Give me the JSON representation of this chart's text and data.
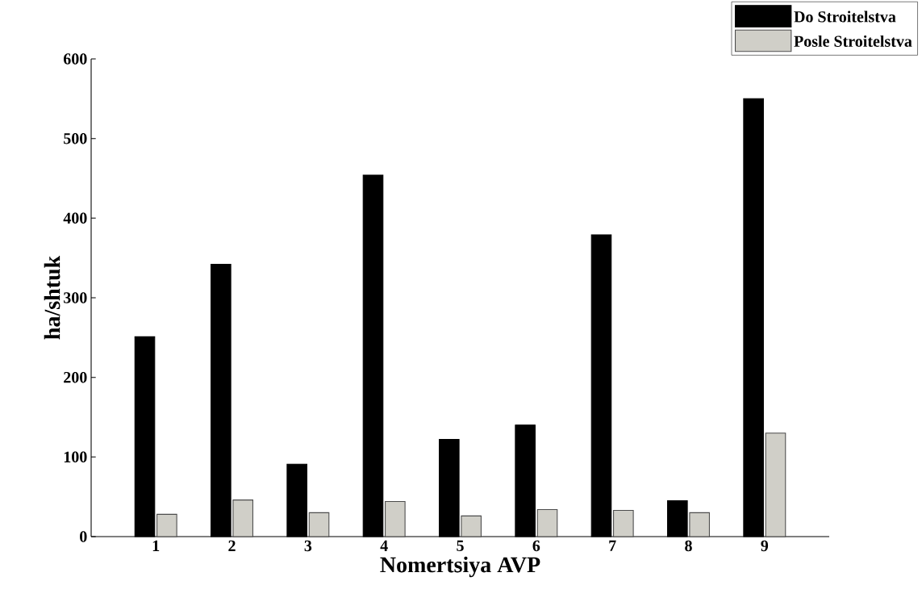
{
  "chart_data": {
    "type": "bar",
    "xlabel": "Nomertsiya AVP",
    "ylabel": "ha/shtuk",
    "categories": [
      "1",
      "2",
      "3",
      "4",
      "5",
      "6",
      "7",
      "8",
      "9"
    ],
    "series": [
      {
        "name": "Do Stroitelstva",
        "color": "#000000",
        "values": [
          251,
          342,
          91,
          454,
          122,
          140,
          379,
          45,
          550
        ]
      },
      {
        "name": "Posle Stroitelstva",
        "color": "#d0cfc8",
        "values": [
          28,
          46,
          30,
          44,
          26,
          34,
          33,
          30,
          130
        ]
      }
    ],
    "ylim": [
      0,
      600
    ],
    "yticks": [
      0,
      100,
      200,
      300,
      400,
      500,
      600
    ],
    "legend": "top right"
  }
}
